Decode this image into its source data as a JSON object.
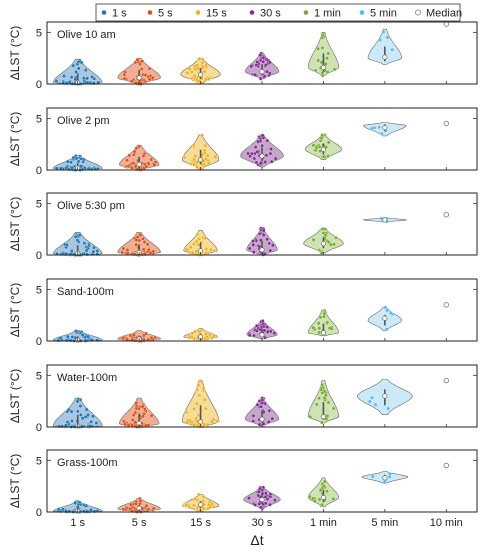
{
  "chart_data": {
    "type": "violin",
    "x_label": "Δt",
    "y_label": "ΔLST (°C)",
    "categories": [
      "1 s",
      "5 s",
      "15 s",
      "30 s",
      "1 min",
      "5 min",
      "10 min"
    ],
    "ylim": [
      0,
      6
    ],
    "yticks": [
      0,
      5
    ],
    "grid": false,
    "legend": {
      "placement": "top",
      "entries": [
        {
          "label": "1 s",
          "color": "#1f77b4",
          "marker": "dot"
        },
        {
          "label": "5 s",
          "color": "#d95319",
          "marker": "dot"
        },
        {
          "label": "15 s",
          "color": "#edb120",
          "marker": "dot"
        },
        {
          "label": "30 s",
          "color": "#7e2f8e",
          "marker": "dot"
        },
        {
          "label": "1 min",
          "color": "#77ac30",
          "marker": "dot"
        },
        {
          "label": "5 min",
          "color": "#4dbeee",
          "marker": "dot"
        },
        {
          "label": "Median",
          "color": "#888888",
          "marker": "open-circle"
        }
      ]
    },
    "panels": [
      {
        "title": "Olive 10 am",
        "medians": [
          0.15,
          0.6,
          0.9,
          1.2,
          1.6,
          2.6,
          5.8
        ],
        "violins": [
          {
            "category": "1 s",
            "min": 0,
            "max": 2.4,
            "mode": 0.12,
            "width": 0.8
          },
          {
            "category": "5 s",
            "min": 0,
            "max": 2.5,
            "mode": 0.6,
            "width": 0.7
          },
          {
            "category": "15 s",
            "min": 0.1,
            "max": 2.5,
            "mode": 0.9,
            "width": 0.65
          },
          {
            "category": "30 s",
            "min": 0.5,
            "max": 3.0,
            "mode": 1.2,
            "width": 0.55
          },
          {
            "category": "1 min",
            "min": 0.8,
            "max": 5.0,
            "mode": 1.6,
            "width": 0.5
          },
          {
            "category": "5 min",
            "min": 1.9,
            "max": 5.3,
            "mode": 2.5,
            "width": 0.55
          }
        ]
      },
      {
        "title": "Olive 2 pm",
        "medians": [
          0.2,
          0.55,
          1.0,
          1.35,
          2.0,
          4.1,
          4.5
        ],
        "violins": [
          {
            "category": "1 s",
            "min": 0,
            "max": 1.4,
            "mode": 0.15,
            "width": 0.8
          },
          {
            "category": "5 s",
            "min": 0,
            "max": 2.4,
            "mode": 0.5,
            "width": 0.65
          },
          {
            "category": "15 s",
            "min": 0.1,
            "max": 3.4,
            "mode": 1.0,
            "width": 0.6
          },
          {
            "category": "30 s",
            "min": 0.3,
            "max": 3.4,
            "mode": 1.35,
            "width": 0.7
          },
          {
            "category": "1 min",
            "min": 1.0,
            "max": 3.4,
            "mode": 2.0,
            "width": 0.6
          },
          {
            "category": "5 min",
            "min": 3.3,
            "max": 4.6,
            "mode": 4.3,
            "width": 0.7
          }
        ]
      },
      {
        "title": "Olive 5:30 pm",
        "medians": [
          0.15,
          0.25,
          0.4,
          0.5,
          1.1,
          3.4,
          3.9
        ],
        "violins": [
          {
            "category": "1 s",
            "min": 0,
            "max": 2.2,
            "mode": 0.1,
            "width": 0.8
          },
          {
            "category": "5 s",
            "min": 0,
            "max": 2.2,
            "mode": 0.25,
            "width": 0.7
          },
          {
            "category": "15 s",
            "min": 0,
            "max": 2.4,
            "mode": 0.4,
            "width": 0.55
          },
          {
            "category": "30 s",
            "min": 0,
            "max": 2.6,
            "mode": 0.5,
            "width": 0.5
          },
          {
            "category": "1 min",
            "min": 0.2,
            "max": 2.6,
            "mode": 1.1,
            "width": 0.65
          },
          {
            "category": "5 min",
            "min": 3.2,
            "max": 3.6,
            "mode": 3.4,
            "width": 0.7
          }
        ]
      },
      {
        "title": "Sand-100m",
        "medians": [
          0.1,
          0.2,
          0.4,
          0.6,
          0.8,
          2.2,
          3.5
        ],
        "violins": [
          {
            "category": "1 s",
            "min": 0,
            "max": 1.0,
            "mode": 0.08,
            "width": 0.8
          },
          {
            "category": "5 s",
            "min": 0,
            "max": 1.0,
            "mode": 0.2,
            "width": 0.7
          },
          {
            "category": "15 s",
            "min": 0.1,
            "max": 1.2,
            "mode": 0.4,
            "width": 0.55
          },
          {
            "category": "30 s",
            "min": 0.2,
            "max": 2.0,
            "mode": 0.6,
            "width": 0.5
          },
          {
            "category": "1 min",
            "min": 0.5,
            "max": 3.0,
            "mode": 0.8,
            "width": 0.5
          },
          {
            "category": "5 min",
            "min": 1.0,
            "max": 3.3,
            "mode": 2.0,
            "width": 0.55
          }
        ]
      },
      {
        "title": "Water-100m",
        "medians": [
          0.1,
          0.35,
          0.5,
          0.75,
          1.0,
          3.0,
          4.5
        ],
        "violins": [
          {
            "category": "1 s",
            "min": 0,
            "max": 2.8,
            "mode": 0.08,
            "width": 0.8
          },
          {
            "category": "5 s",
            "min": 0,
            "max": 2.8,
            "mode": 0.3,
            "width": 0.65
          },
          {
            "category": "15 s",
            "min": 0,
            "max": 4.5,
            "mode": 0.5,
            "width": 0.6
          },
          {
            "category": "30 s",
            "min": 0.1,
            "max": 2.8,
            "mode": 0.75,
            "width": 0.55
          },
          {
            "category": "1 min",
            "min": 0.4,
            "max": 4.5,
            "mode": 1.0,
            "width": 0.5
          },
          {
            "category": "5 min",
            "min": 1.2,
            "max": 4.6,
            "mode": 3.0,
            "width": 0.9
          }
        ]
      },
      {
        "title": "Grass-100m",
        "medians": [
          0.1,
          0.35,
          0.7,
          1.2,
          1.4,
          3.3,
          4.5
        ],
        "violins": [
          {
            "category": "1 s",
            "min": 0,
            "max": 1.0,
            "mode": 0.08,
            "width": 0.8
          },
          {
            "category": "5 s",
            "min": 0,
            "max": 1.3,
            "mode": 0.3,
            "width": 0.7
          },
          {
            "category": "15 s",
            "min": 0.1,
            "max": 1.7,
            "mode": 0.6,
            "width": 0.6
          },
          {
            "category": "30 s",
            "min": 0.3,
            "max": 2.4,
            "mode": 1.2,
            "width": 0.6
          },
          {
            "category": "1 min",
            "min": 0.5,
            "max": 3.3,
            "mode": 1.4,
            "width": 0.5
          },
          {
            "category": "5 min",
            "min": 2.8,
            "max": 3.9,
            "mode": 3.4,
            "width": 0.75
          }
        ]
      }
    ],
    "colors": [
      "#1f77b4",
      "#d95319",
      "#edb120",
      "#7e2f8e",
      "#77ac30",
      "#4dbeee"
    ],
    "fill_colors": [
      "#a9c6e2",
      "#f0ae92",
      "#f6dc94",
      "#c7a6cc",
      "#cde3b2",
      "#cbe9f6"
    ]
  }
}
